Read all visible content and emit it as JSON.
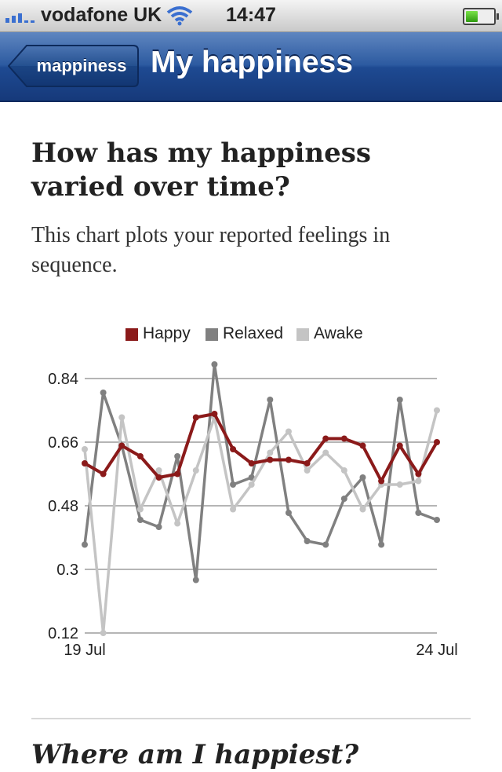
{
  "status_bar": {
    "carrier": "vodafone UK",
    "time": "14:47",
    "battery_level": 0.45
  },
  "nav": {
    "back_label": "mappiness",
    "title": "My happiness"
  },
  "section": {
    "heading": "How has my happiness varied over time?",
    "intro": "This chart plots your reported feelings in sequence."
  },
  "next_section": {
    "heading": "Where am I happiest?"
  },
  "chart_data": {
    "type": "line",
    "x_labels": [
      "19 Jul",
      "24 Jul"
    ],
    "ylim": [
      0.12,
      0.84
    ],
    "yticks": [
      "0.84",
      "0.66",
      "0.48",
      "0.3",
      "0.12"
    ],
    "grid": true,
    "legend_position": "top",
    "series": [
      {
        "name": "Relaxed",
        "color": "#808080",
        "values": [
          0.37,
          0.8,
          0.65,
          0.44,
          0.42,
          0.62,
          0.27,
          0.88,
          0.54,
          0.56,
          0.78,
          0.46,
          0.38,
          0.37,
          0.5,
          0.56,
          0.37,
          0.78,
          0.46,
          0.44
        ]
      },
      {
        "name": "Awake",
        "color": "#c4c4c4",
        "values": [
          0.64,
          0.12,
          0.73,
          0.47,
          0.58,
          0.43,
          0.58,
          0.73,
          0.47,
          0.54,
          0.63,
          0.69,
          0.58,
          0.63,
          0.58,
          0.47,
          0.54,
          0.54,
          0.55,
          0.75
        ]
      },
      {
        "name": "Happy",
        "color": "#8b1a1a",
        "values": [
          0.6,
          0.57,
          0.65,
          0.62,
          0.56,
          0.57,
          0.73,
          0.74,
          0.64,
          0.6,
          0.61,
          0.61,
          0.6,
          0.67,
          0.67,
          0.65,
          0.55,
          0.65,
          0.57,
          0.66
        ]
      }
    ]
  }
}
